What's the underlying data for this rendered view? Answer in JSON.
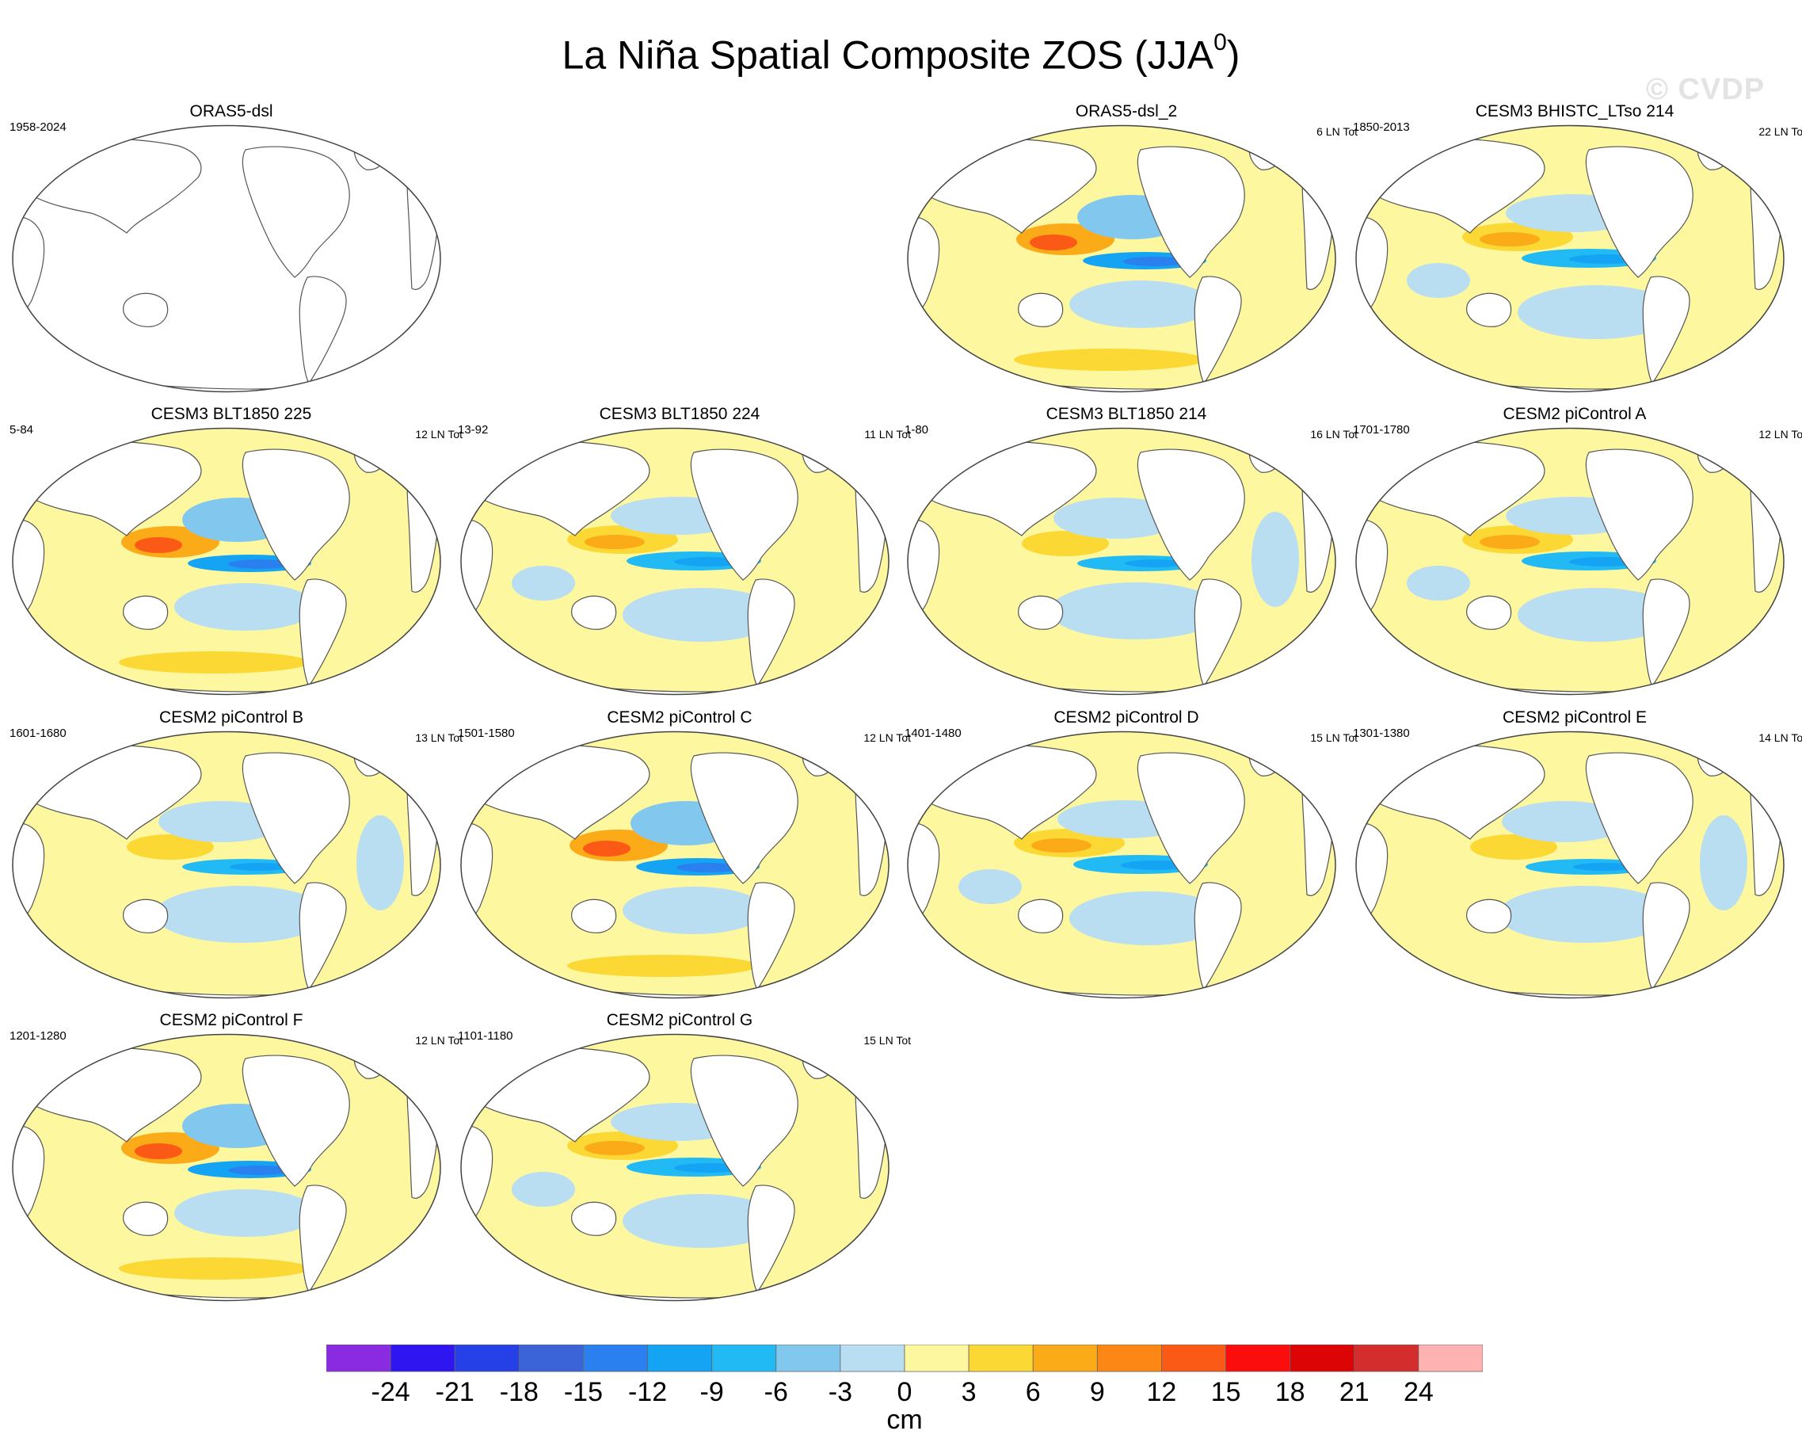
{
  "title": "La Niña Spatial Composite ZOS (JJA",
  "title_sup": "0",
  "title_close": ")",
  "watermark": "© CVDP",
  "chart_data": {
    "type": "heatmap",
    "projection": "Robinson, Pacific-centered world maps",
    "variable": "ZOS",
    "units": "cm",
    "colorbar": {
      "levels": [
        -24,
        -21,
        -18,
        -15,
        -12,
        -9,
        -6,
        -3,
        0,
        3,
        6,
        9,
        12,
        15,
        18,
        21,
        24
      ],
      "tick_labels": [
        "-24",
        "-21",
        "-18",
        "-15",
        "-12",
        "-9",
        "-6",
        "-3",
        "0",
        "3",
        "6",
        "9",
        "12",
        "15",
        "18",
        "21",
        "24"
      ],
      "colors": [
        "#8a2be2",
        "#2f16f0",
        "#2440e6",
        "#3a64d8",
        "#2a80ee",
        "#15a3f4",
        "#22baf5",
        "#82c8ee",
        "#b9ddf1",
        "#fdf7a0",
        "#fbd834",
        "#fbaa18",
        "#fc8714",
        "#fb5a16",
        "#fb0d0d",
        "#dc0404",
        "#d32d2d",
        "#feb2b2"
      ],
      "units_label": "cm"
    },
    "panels": [
      {
        "title": "ORAS5-dsl",
        "left": "1958-2024",
        "right": "",
        "empty": true,
        "pattern": 0
      },
      {
        "title": "ORAS5-dsl_2",
        "left": "",
        "right": "6 LN Tot",
        "pattern": 1
      },
      {
        "title": "CESM3 BHISTC_LTso 214",
        "left": "1850-2013",
        "right": "22 LN Tot",
        "pattern": 2
      },
      {
        "title": "CESM3 BLT1850 225",
        "left": "5-84",
        "right": "12 LN Tot",
        "pattern": 1
      },
      {
        "title": "CESM3 BLT1850 224",
        "left": "13-92",
        "right": "11 LN Tot",
        "pattern": 2
      },
      {
        "title": "CESM3 BLT1850 214",
        "left": "1-80",
        "right": "16 LN Tot",
        "pattern": 3
      },
      {
        "title": "CESM2 piControl A",
        "left": "1701-1780",
        "right": "12 LN Tot",
        "pattern": 2
      },
      {
        "title": "CESM2 piControl B",
        "left": "1601-1680",
        "right": "13 LN Tot",
        "pattern": 3
      },
      {
        "title": "CESM2 piControl C",
        "left": "1501-1580",
        "right": "12 LN Tot",
        "pattern": 1
      },
      {
        "title": "CESM2 piControl D",
        "left": "1401-1480",
        "right": "15 LN Tot",
        "pattern": 2
      },
      {
        "title": "CESM2 piControl E",
        "left": "1301-1380",
        "right": "14 LN Tot",
        "pattern": 3
      },
      {
        "title": "CESM2 piControl F",
        "left": "1201-1280",
        "right": "12 LN Tot",
        "pattern": 1
      },
      {
        "title": "CESM2 piControl G",
        "left": "1101-1180",
        "right": "15 LN Tot",
        "pattern": 2
      }
    ]
  }
}
